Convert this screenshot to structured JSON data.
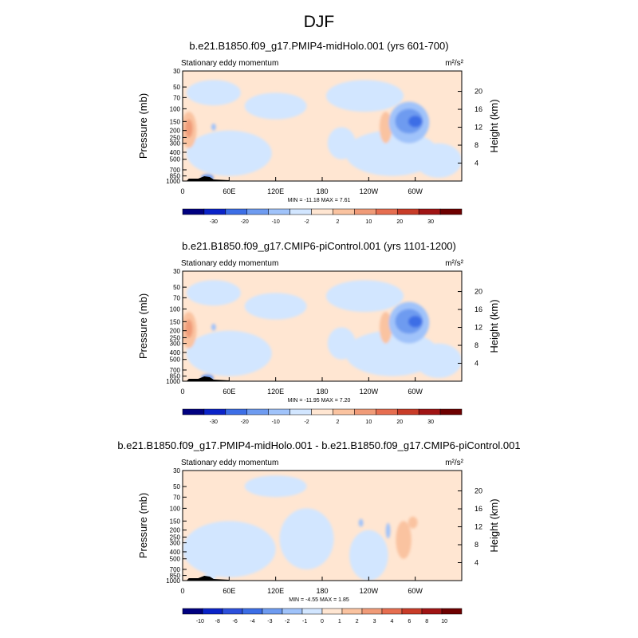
{
  "page": {
    "title": "DJF"
  },
  "colors": {
    "levels_abs": [
      "#000080",
      "#0a23c8",
      "#3c6ee6",
      "#6e9bf0",
      "#a0c3fa",
      "#d2e6ff",
      "#ffe6d2",
      "#fac3a0",
      "#f09b78",
      "#e66e50",
      "#c83c28",
      "#a01414",
      "#6e0000"
    ],
    "levels_diff": [
      "#000080",
      "#0a23c8",
      "#2d50dc",
      "#3c6ee6",
      "#6e9bf0",
      "#a0c3fa",
      "#d2e6ff",
      "#ffe6d2",
      "#fac3a0",
      "#f09b78",
      "#e66e50",
      "#c83c28",
      "#a01414",
      "#6e0000"
    ]
  },
  "chart_data": [
    {
      "type": "heatmap",
      "title": "b.e21.B1850.f09_g17.PMIP4-midHolo.001 (yrs 601-700)",
      "subtitle_left": "Stationary eddy momentum",
      "units": "m²/s²",
      "ylabel": "Pressure (mb)",
      "ylabel_right": "Height (km)",
      "x_ticks": [
        "0",
        "60E",
        "120E",
        "180",
        "120W",
        "60W"
      ],
      "y_ticks": [
        "30",
        "50",
        "70",
        "100",
        "150",
        "200",
        "250",
        "300",
        "400",
        "500",
        "700",
        "850",
        "1000"
      ],
      "y_ticks_right": [
        "20",
        "16",
        "12",
        "8",
        "4"
      ],
      "ylim": [
        1000,
        30
      ],
      "stats": "MIN = -11.18  MAX =   7.61",
      "colorbar_labels": [
        "-30",
        "-20",
        "-10",
        "-2",
        "2",
        "10",
        "20",
        "30"
      ],
      "features": [
        {
          "kind": "negative",
          "lon": 290,
          "p": 150,
          "value": -11.18
        },
        {
          "kind": "positive",
          "lon": 10,
          "p": 180,
          "value": 7.61
        }
      ]
    },
    {
      "type": "heatmap",
      "title": "b.e21.B1850.f09_g17.CMIP6-piControl.001 (yrs 1101-1200)",
      "subtitle_left": "Stationary eddy momentum",
      "units": "m²/s²",
      "ylabel": "Pressure (mb)",
      "ylabel_right": "Height (km)",
      "x_ticks": [
        "0",
        "60E",
        "120E",
        "180",
        "120W",
        "60W"
      ],
      "y_ticks": [
        "30",
        "50",
        "70",
        "100",
        "150",
        "200",
        "250",
        "300",
        "400",
        "500",
        "700",
        "850",
        "1000"
      ],
      "y_ticks_right": [
        "20",
        "16",
        "12",
        "8",
        "4"
      ],
      "ylim": [
        1000,
        30
      ],
      "stats": "MIN = -11.95  MAX =   7.20",
      "colorbar_labels": [
        "-30",
        "-20",
        "-10",
        "-2",
        "2",
        "10",
        "20",
        "30"
      ],
      "features": [
        {
          "kind": "negative",
          "lon": 300,
          "p": 150,
          "value": -11.95
        },
        {
          "kind": "positive",
          "lon": 10,
          "p": 180,
          "value": 7.2
        }
      ]
    },
    {
      "type": "heatmap",
      "title": "b.e21.B1850.f09_g17.PMIP4-midHolo.001 - b.e21.B1850.f09_g17.CMIP6-piControl.001",
      "subtitle_left": "Stationary eddy momentum",
      "units": "m²/s²",
      "ylabel": "Pressure (mb)",
      "ylabel_right": "Height (km)",
      "x_ticks": [
        "0",
        "60E",
        "120E",
        "180",
        "120W",
        "60W"
      ],
      "y_ticks": [
        "30",
        "50",
        "70",
        "100",
        "150",
        "200",
        "250",
        "300",
        "400",
        "500",
        "700",
        "850",
        "1000"
      ],
      "y_ticks_right": [
        "20",
        "16",
        "12",
        "8",
        "4"
      ],
      "ylim": [
        1000,
        30
      ],
      "stats": "MIN = -4.55  MAX =   1.85",
      "colorbar_labels": [
        "-10",
        "-8",
        "-6",
        "-4",
        "-3",
        "-2",
        "-1",
        "0",
        "1",
        "2",
        "3",
        "4",
        "6",
        "8",
        "10"
      ],
      "features": [
        {
          "kind": "negative",
          "lon": 265,
          "p": 150,
          "value": -4.55
        },
        {
          "kind": "positive",
          "lon": 285,
          "p": 200,
          "value": 1.85
        }
      ]
    }
  ]
}
